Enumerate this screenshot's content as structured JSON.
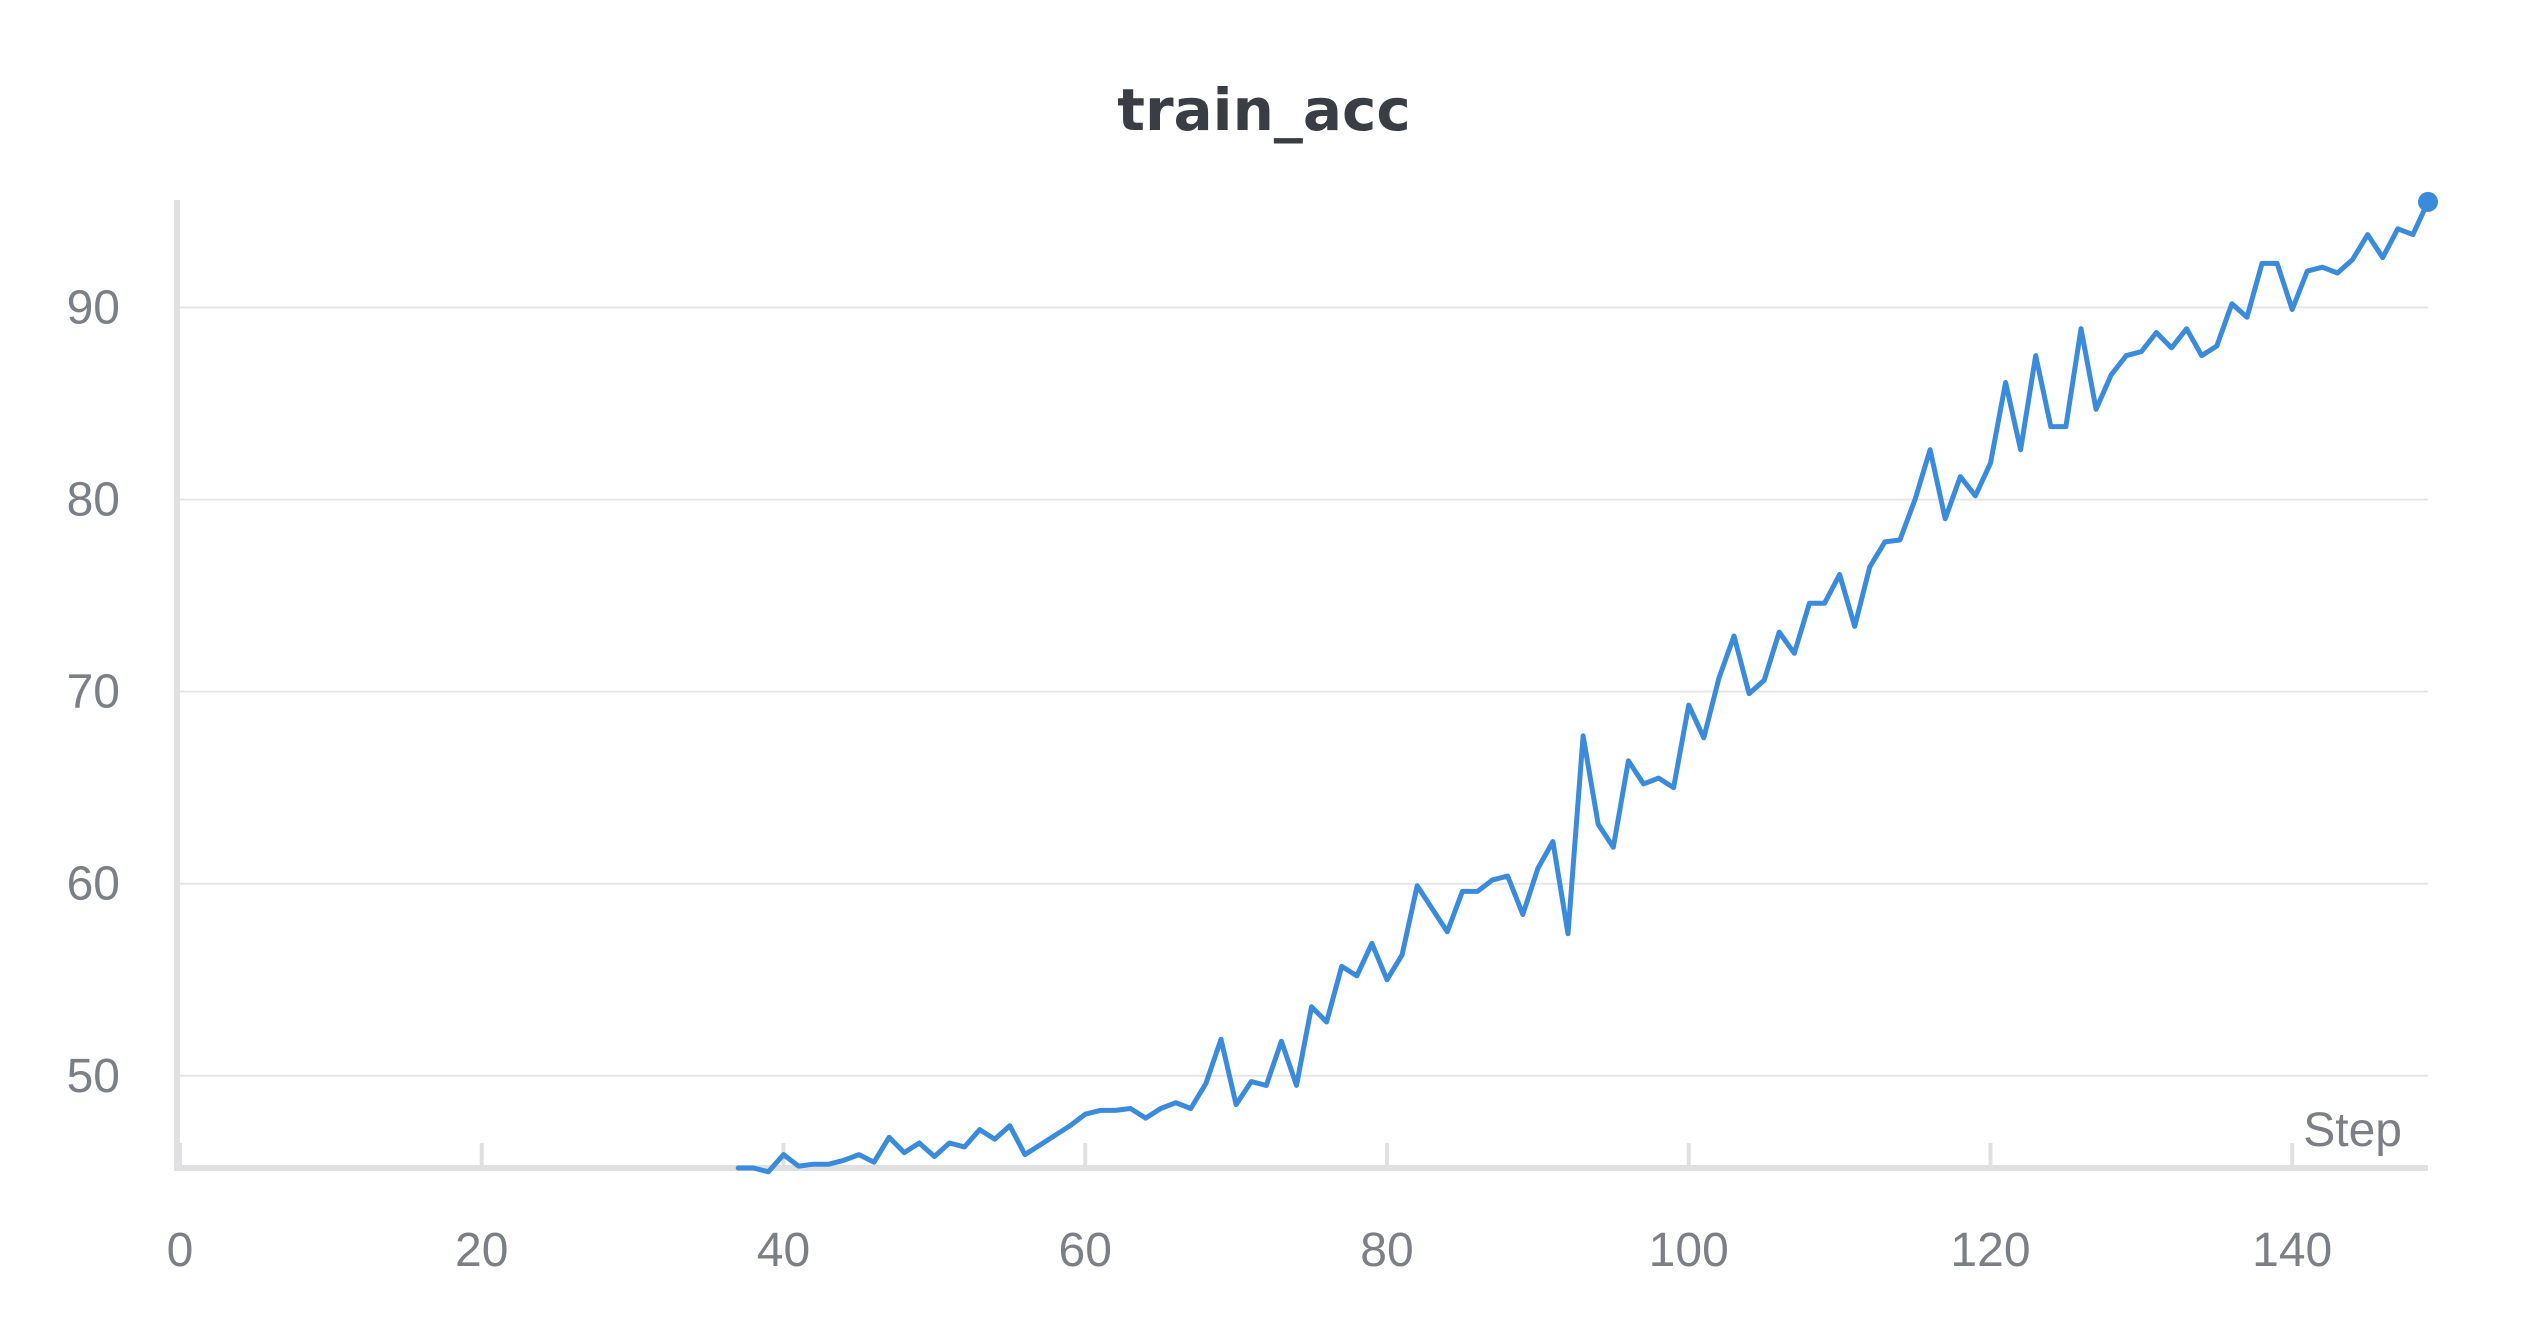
{
  "colors": {
    "series": "#3a8bdb"
  },
  "chart_data": {
    "type": "line",
    "title": "train_acc",
    "xlabel": "Step",
    "ylabel": "",
    "xlim": [
      0,
      149
    ],
    "ylim": [
      45.2,
      95.6
    ],
    "grid": true,
    "xticks": [
      0,
      20,
      40,
      60,
      80,
      100,
      120,
      140
    ],
    "yticks": [
      50,
      60,
      70,
      80,
      90
    ],
    "series": [
      {
        "x": [
          37,
          38,
          39,
          40,
          41,
          42,
          43,
          44,
          45,
          46,
          47,
          48,
          49,
          50,
          51,
          52,
          53,
          54,
          55,
          56,
          57,
          58,
          59,
          60,
          61,
          62,
          63,
          64,
          65,
          66,
          67,
          68,
          69,
          70,
          71,
          72,
          73,
          74,
          75,
          76,
          77,
          78,
          79,
          80,
          81,
          82,
          83,
          84,
          85,
          86,
          87,
          88,
          89,
          90,
          91,
          92,
          93,
          94,
          95,
          96,
          97,
          98,
          99,
          100,
          101,
          102,
          103,
          104,
          105,
          106,
          107,
          108,
          109,
          110,
          111,
          112,
          113,
          114,
          115,
          116,
          117,
          118,
          119,
          120,
          121,
          122,
          123,
          124,
          125,
          126,
          127,
          128,
          129,
          130,
          131,
          132,
          133,
          134,
          135,
          136,
          137,
          138,
          139,
          140,
          141,
          142,
          143,
          144,
          145,
          146,
          147,
          148,
          149
        ],
        "values": [
          45.2,
          45.2,
          45.0,
          45.9,
          45.3,
          45.4,
          45.4,
          45.6,
          45.9,
          45.5,
          46.8,
          46.0,
          46.5,
          45.8,
          46.5,
          46.3,
          47.2,
          46.7,
          47.4,
          45.9,
          46.4,
          46.9,
          47.4,
          48.0,
          48.2,
          48.2,
          48.3,
          47.8,
          48.3,
          48.6,
          48.3,
          49.6,
          51.9,
          48.5,
          49.7,
          49.5,
          51.8,
          49.5,
          53.6,
          52.8,
          55.7,
          55.2,
          56.9,
          55.0,
          56.3,
          59.9,
          58.7,
          57.5,
          59.6,
          59.6,
          60.2,
          60.4,
          58.4,
          60.8,
          62.2,
          57.4,
          67.7,
          63.1,
          61.9,
          66.4,
          65.2,
          65.5,
          65.0,
          69.3,
          67.6,
          70.7,
          72.9,
          69.9,
          70.6,
          73.1,
          72.0,
          74.6,
          74.6,
          76.1,
          73.4,
          76.5,
          77.8,
          77.9,
          80.0,
          82.6,
          79.0,
          81.2,
          80.2,
          81.9,
          86.1,
          82.6,
          87.5,
          83.8,
          83.8,
          88.9,
          84.7,
          86.5,
          87.5,
          87.7,
          88.7,
          87.9,
          88.9,
          87.5,
          88.0,
          90.2,
          89.5,
          92.3,
          92.3,
          89.9,
          91.9,
          92.1,
          91.8,
          92.5,
          93.8,
          92.6,
          94.1,
          93.8,
          95.5
        ]
      }
    ]
  }
}
